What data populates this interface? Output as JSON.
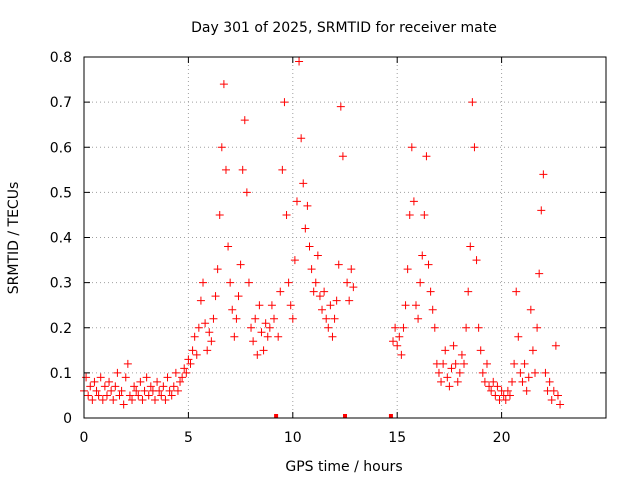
{
  "chart_data": {
    "type": "scatter",
    "title": "Day 301 of 2025, SRMTID for receiver mate",
    "xlabel": "GPS time / hours",
    "ylabel": "SRMTID / TECUs",
    "xlim": [
      0,
      25
    ],
    "ylim": [
      0,
      0.8
    ],
    "x_ticks": [
      0,
      5,
      10,
      15,
      20
    ],
    "x_tick_labels": [
      "0",
      "5",
      "10",
      "15",
      "20"
    ],
    "y_ticks": [
      0,
      0.1,
      0.2,
      0.3,
      0.4,
      0.5,
      0.6,
      0.7,
      0.8
    ],
    "y_tick_labels": [
      "0",
      "0.1",
      "0.2",
      "0.3",
      "0.4",
      "0.5",
      "0.6",
      "0.7",
      "0.8"
    ],
    "grid": true,
    "marker_color": "#ff0000",
    "marker": "plus",
    "gap_markers_x": [
      9.2,
      12.5,
      14.7
    ],
    "series": [
      {
        "points": [
          [
            0.0,
            0.06
          ],
          [
            0.1,
            0.09
          ],
          [
            0.2,
            0.05
          ],
          [
            0.3,
            0.07
          ],
          [
            0.4,
            0.04
          ],
          [
            0.5,
            0.08
          ],
          [
            0.6,
            0.06
          ],
          [
            0.7,
            0.05
          ],
          [
            0.8,
            0.09
          ],
          [
            0.9,
            0.04
          ],
          [
            1.0,
            0.07
          ],
          [
            1.1,
            0.05
          ],
          [
            1.2,
            0.08
          ],
          [
            1.3,
            0.06
          ],
          [
            1.4,
            0.04
          ],
          [
            1.5,
            0.07
          ],
          [
            1.6,
            0.1
          ],
          [
            1.7,
            0.05
          ],
          [
            1.8,
            0.06
          ],
          [
            1.9,
            0.03
          ],
          [
            2.0,
            0.09
          ],
          [
            2.1,
            0.12
          ],
          [
            2.2,
            0.05
          ],
          [
            2.3,
            0.04
          ],
          [
            2.4,
            0.07
          ],
          [
            2.5,
            0.06
          ],
          [
            2.6,
            0.05
          ],
          [
            2.7,
            0.08
          ],
          [
            2.8,
            0.04
          ],
          [
            2.9,
            0.06
          ],
          [
            3.0,
            0.09
          ],
          [
            3.1,
            0.05
          ],
          [
            3.2,
            0.07
          ],
          [
            3.3,
            0.06
          ],
          [
            3.4,
            0.04
          ],
          [
            3.5,
            0.08
          ],
          [
            3.6,
            0.06
          ],
          [
            3.7,
            0.05
          ],
          [
            3.8,
            0.07
          ],
          [
            3.9,
            0.04
          ],
          [
            4.0,
            0.09
          ],
          [
            4.1,
            0.06
          ],
          [
            4.2,
            0.05
          ],
          [
            4.3,
            0.07
          ],
          [
            4.4,
            0.1
          ],
          [
            4.5,
            0.06
          ],
          [
            4.6,
            0.08
          ],
          [
            4.7,
            0.09
          ],
          [
            4.8,
            0.11
          ],
          [
            4.9,
            0.1
          ],
          [
            5.0,
            0.13
          ],
          [
            5.1,
            0.12
          ],
          [
            5.2,
            0.15
          ],
          [
            5.3,
            0.18
          ],
          [
            5.4,
            0.14
          ],
          [
            5.5,
            0.2
          ],
          [
            5.6,
            0.26
          ],
          [
            5.7,
            0.3
          ],
          [
            5.8,
            0.21
          ],
          [
            5.9,
            0.15
          ],
          [
            6.0,
            0.19
          ],
          [
            6.1,
            0.17
          ],
          [
            6.2,
            0.22
          ],
          [
            6.3,
            0.27
          ],
          [
            6.4,
            0.33
          ],
          [
            6.5,
            0.45
          ],
          [
            6.6,
            0.6
          ],
          [
            6.7,
            0.74
          ],
          [
            6.8,
            0.55
          ],
          [
            6.9,
            0.38
          ],
          [
            7.0,
            0.3
          ],
          [
            7.1,
            0.24
          ],
          [
            7.2,
            0.18
          ],
          [
            7.3,
            0.22
          ],
          [
            7.4,
            0.27
          ],
          [
            7.5,
            0.34
          ],
          [
            7.6,
            0.55
          ],
          [
            7.7,
            0.66
          ],
          [
            7.8,
            0.5
          ],
          [
            7.9,
            0.3
          ],
          [
            8.0,
            0.2
          ],
          [
            8.1,
            0.17
          ],
          [
            8.2,
            0.22
          ],
          [
            8.3,
            0.14
          ],
          [
            8.4,
            0.25
          ],
          [
            8.5,
            0.19
          ],
          [
            8.6,
            0.15
          ],
          [
            8.7,
            0.21
          ],
          [
            8.8,
            0.18
          ],
          [
            8.9,
            0.2
          ],
          [
            9.0,
            0.25
          ],
          [
            9.1,
            0.22
          ],
          [
            9.3,
            0.18
          ],
          [
            9.4,
            0.28
          ],
          [
            9.5,
            0.55
          ],
          [
            9.6,
            0.7
          ],
          [
            9.7,
            0.45
          ],
          [
            9.8,
            0.3
          ],
          [
            9.9,
            0.25
          ],
          [
            10.0,
            0.22
          ],
          [
            10.1,
            0.35
          ],
          [
            10.2,
            0.48
          ],
          [
            10.3,
            0.79
          ],
          [
            10.4,
            0.62
          ],
          [
            10.5,
            0.52
          ],
          [
            10.6,
            0.42
          ],
          [
            10.7,
            0.47
          ],
          [
            10.8,
            0.38
          ],
          [
            10.9,
            0.33
          ],
          [
            11.0,
            0.28
          ],
          [
            11.1,
            0.3
          ],
          [
            11.2,
            0.36
          ],
          [
            11.3,
            0.27
          ],
          [
            11.4,
            0.24
          ],
          [
            11.5,
            0.28
          ],
          [
            11.6,
            0.22
          ],
          [
            11.7,
            0.2
          ],
          [
            11.8,
            0.25
          ],
          [
            11.9,
            0.18
          ],
          [
            12.0,
            0.22
          ],
          [
            12.1,
            0.26
          ],
          [
            12.2,
            0.34
          ],
          [
            12.3,
            0.69
          ],
          [
            12.4,
            0.58
          ],
          [
            12.6,
            0.3
          ],
          [
            12.7,
            0.26
          ],
          [
            12.8,
            0.33
          ],
          [
            12.9,
            0.29
          ],
          [
            14.8,
            0.17
          ],
          [
            14.9,
            0.2
          ],
          [
            15.0,
            0.16
          ],
          [
            15.1,
            0.18
          ],
          [
            15.2,
            0.14
          ],
          [
            15.3,
            0.2
          ],
          [
            15.4,
            0.25
          ],
          [
            15.5,
            0.33
          ],
          [
            15.6,
            0.45
          ],
          [
            15.7,
            0.6
          ],
          [
            15.8,
            0.48
          ],
          [
            15.9,
            0.25
          ],
          [
            16.0,
            0.22
          ],
          [
            16.1,
            0.3
          ],
          [
            16.2,
            0.36
          ],
          [
            16.3,
            0.45
          ],
          [
            16.4,
            0.58
          ],
          [
            16.5,
            0.34
          ],
          [
            16.6,
            0.28
          ],
          [
            16.7,
            0.24
          ],
          [
            16.8,
            0.2
          ],
          [
            16.9,
            0.12
          ],
          [
            17.0,
            0.1
          ],
          [
            17.1,
            0.08
          ],
          [
            17.2,
            0.12
          ],
          [
            17.3,
            0.15
          ],
          [
            17.4,
            0.09
          ],
          [
            17.5,
            0.07
          ],
          [
            17.6,
            0.11
          ],
          [
            17.7,
            0.16
          ],
          [
            17.8,
            0.12
          ],
          [
            17.9,
            0.08
          ],
          [
            18.0,
            0.1
          ],
          [
            18.1,
            0.14
          ],
          [
            18.2,
            0.12
          ],
          [
            18.3,
            0.2
          ],
          [
            18.4,
            0.28
          ],
          [
            18.5,
            0.38
          ],
          [
            18.6,
            0.7
          ],
          [
            18.7,
            0.6
          ],
          [
            18.8,
            0.35
          ],
          [
            18.9,
            0.2
          ],
          [
            19.0,
            0.15
          ],
          [
            19.1,
            0.1
          ],
          [
            19.2,
            0.08
          ],
          [
            19.3,
            0.12
          ],
          [
            19.4,
            0.07
          ],
          [
            19.5,
            0.06
          ],
          [
            19.6,
            0.08
          ],
          [
            19.7,
            0.05
          ],
          [
            19.8,
            0.07
          ],
          [
            19.9,
            0.04
          ],
          [
            20.0,
            0.06
          ],
          [
            20.1,
            0.05
          ],
          [
            20.2,
            0.04
          ],
          [
            20.3,
            0.06
          ],
          [
            20.4,
            0.05
          ],
          [
            20.5,
            0.08
          ],
          [
            20.6,
            0.12
          ],
          [
            20.7,
            0.28
          ],
          [
            20.8,
            0.18
          ],
          [
            20.9,
            0.1
          ],
          [
            21.0,
            0.08
          ],
          [
            21.1,
            0.12
          ],
          [
            21.2,
            0.06
          ],
          [
            21.3,
            0.09
          ],
          [
            21.4,
            0.24
          ],
          [
            21.5,
            0.15
          ],
          [
            21.6,
            0.1
          ],
          [
            21.7,
            0.2
          ],
          [
            21.8,
            0.32
          ],
          [
            21.9,
            0.46
          ],
          [
            22.0,
            0.54
          ],
          [
            22.1,
            0.1
          ],
          [
            22.2,
            0.06
          ],
          [
            22.3,
            0.08
          ],
          [
            22.4,
            0.04
          ],
          [
            22.5,
            0.06
          ],
          [
            22.6,
            0.16
          ],
          [
            22.7,
            0.05
          ],
          [
            22.8,
            0.03
          ]
        ]
      }
    ]
  }
}
